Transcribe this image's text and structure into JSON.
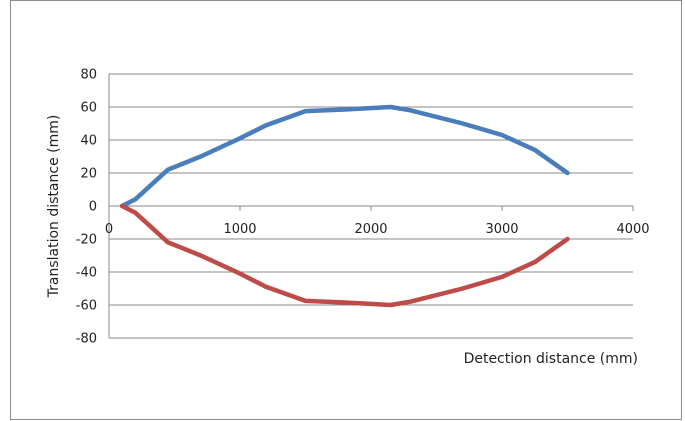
{
  "chart_data": {
    "type": "line",
    "title": "",
    "xlabel": "Detection distance (mm)",
    "ylabel": "Translation distance (mm)",
    "xlim": [
      0,
      4000
    ],
    "ylim": [
      -80,
      80
    ],
    "x_ticks": [
      "0",
      "1000",
      "2000",
      "3000",
      "4000"
    ],
    "y_ticks": [
      "80",
      "60",
      "40",
      "20",
      "0",
      "-20",
      "-40",
      "-60",
      "-80"
    ],
    "grid": "horizontal",
    "legend": "none",
    "series": [
      {
        "color": "#4a7ebb",
        "points": [
          [
            100,
            0
          ],
          [
            200,
            4
          ],
          [
            450,
            22
          ],
          [
            700,
            30
          ],
          [
            1000,
            41
          ],
          [
            1200,
            49
          ],
          [
            1500,
            57.5
          ],
          [
            1800,
            58.5
          ],
          [
            2150,
            60
          ],
          [
            2300,
            58
          ],
          [
            2700,
            50
          ],
          [
            3000,
            43
          ],
          [
            3250,
            34
          ],
          [
            3500,
            20
          ]
        ]
      },
      {
        "color": "#be4b48",
        "points": [
          [
            100,
            0
          ],
          [
            200,
            -4
          ],
          [
            450,
            -22
          ],
          [
            700,
            -30
          ],
          [
            1000,
            -41
          ],
          [
            1200,
            -49
          ],
          [
            1500,
            -57.5
          ],
          [
            1800,
            -58.5
          ],
          [
            2150,
            -60
          ],
          [
            2300,
            -58
          ],
          [
            2700,
            -50
          ],
          [
            3000,
            -43
          ],
          [
            3250,
            -34
          ],
          [
            3500,
            -20
          ]
        ]
      }
    ]
  }
}
